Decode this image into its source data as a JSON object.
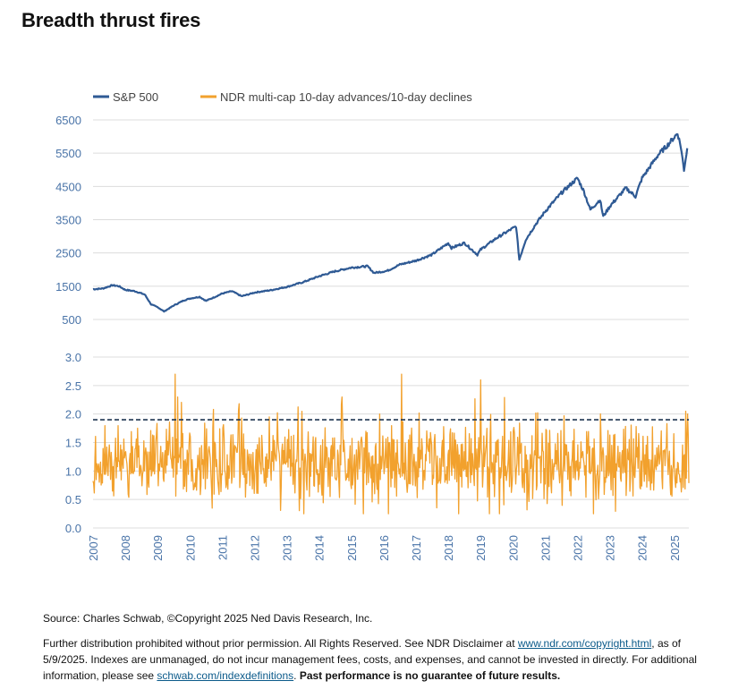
{
  "title": "Breadth thrust fires",
  "colors": {
    "sp500": "#2f5a94",
    "breadth": "#f2a12d",
    "threshold": "#1f3550",
    "grid": "#dcdcdc",
    "axis_text": "#4a74a8"
  },
  "chart_data": [
    {
      "type": "line",
      "legend": [
        {
          "name": "S&P 500",
          "color": "#2f5a94"
        },
        {
          "name": "NDR multi-cap 10-day advances/10-day declines",
          "color": "#f2a12d"
        }
      ],
      "series": [
        {
          "name": "S&P 500",
          "x": [
            2007.0,
            2007.3,
            2007.6,
            2007.8,
            2008.0,
            2008.3,
            2008.6,
            2008.8,
            2009.0,
            2009.2,
            2009.5,
            2009.8,
            2010.0,
            2010.3,
            2010.5,
            2010.8,
            2011.0,
            2011.3,
            2011.6,
            2011.8,
            2012.0,
            2012.5,
            2013.0,
            2013.5,
            2014.0,
            2014.5,
            2015.0,
            2015.5,
            2015.7,
            2016.1,
            2016.5,
            2017.0,
            2017.5,
            2018.0,
            2018.1,
            2018.5,
            2018.9,
            2019.0,
            2019.5,
            2020.1,
            2020.2,
            2020.4,
            2020.7,
            2021.0,
            2021.5,
            2022.0,
            2022.2,
            2022.4,
            2022.7,
            2022.8,
            2023.0,
            2023.5,
            2023.8,
            2024.0,
            2024.5,
            2024.8,
            2025.1,
            2025.2,
            2025.3,
            2025.4
          ],
          "values": [
            1410,
            1430,
            1530,
            1500,
            1390,
            1350,
            1250,
            950,
            870,
            740,
            920,
            1070,
            1130,
            1180,
            1060,
            1190,
            1280,
            1350,
            1200,
            1250,
            1310,
            1380,
            1480,
            1620,
            1800,
            1950,
            2060,
            2100,
            1900,
            1960,
            2150,
            2270,
            2450,
            2800,
            2650,
            2800,
            2450,
            2600,
            2950,
            3300,
            2300,
            2900,
            3350,
            3750,
            4300,
            4750,
            4350,
            3800,
            4100,
            3600,
            3900,
            4450,
            4200,
            4750,
            5450,
            5750,
            6100,
            5700,
            5000,
            5650
          ]
        },
        {
          "name": "NDR multi-cap 10-day advances/10-day declines",
          "threshold": 1.9,
          "spikes": [
            {
              "x": 2009.55,
              "y": 2.7
            },
            {
              "x": 2016.55,
              "y": 2.7
            },
            {
              "x": 2019.0,
              "y": 2.6
            },
            {
              "x": 2025.35,
              "y": 2.05
            }
          ]
        }
      ],
      "y_axis_top": {
        "ticks": [
          "6500",
          "5500",
          "4500",
          "3500",
          "2500",
          "1500",
          "500"
        ],
        "range": [
          500,
          6500
        ]
      },
      "y_axis_bottom": {
        "ticks": [
          "3.0",
          "2.5",
          "2.0",
          "1.5",
          "1.0",
          "0.5",
          "0.0"
        ],
        "range": [
          0.0,
          3.0
        ]
      },
      "x_ticks": [
        "2007",
        "2008",
        "2009",
        "2010",
        "2011",
        "2012",
        "2013",
        "2014",
        "2015",
        "2016",
        "2017",
        "2018",
        "2019",
        "2020",
        "2021",
        "2022",
        "2023",
        "2024",
        "2025"
      ],
      "x_range": [
        2007,
        2025.45
      ]
    }
  ],
  "footer": {
    "source": "Source: Charles Schwab, ©Copyright 2025 Ned Davis Research, Inc.",
    "n1": "Further distribution prohibited without prior permission. All Rights Reserved. See NDR Disclaimer at ",
    "link1": "www.ndr.com/copyright.html",
    "n2": ", as of 5/9/2025. Indexes are unmanaged, do not incur management fees, costs, and expenses, and cannot be invested in directly. For additional information, please see ",
    "link2": "schwab.com/indexdefinitions",
    "n3": ". ",
    "bold": "Past performance is no guarantee of future results."
  }
}
